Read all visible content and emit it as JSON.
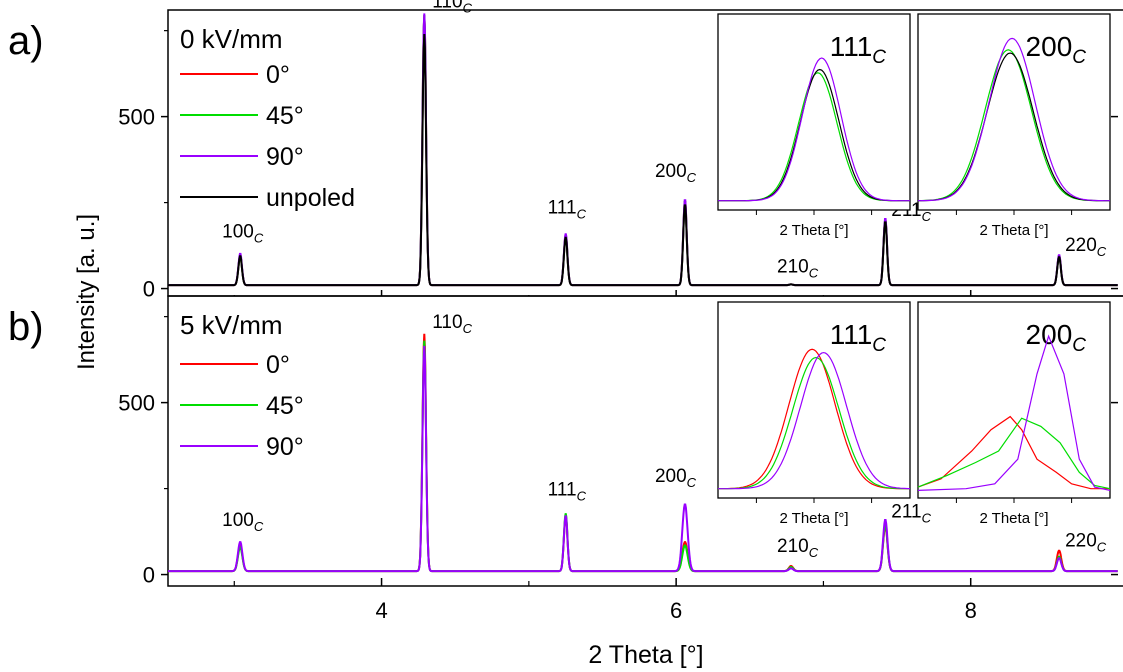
{
  "figure": {
    "ylabel": "Intensity [a. u.]",
    "xlabel": "2 Theta [°]"
  },
  "chart_data": [
    {
      "type": "line",
      "panel_label": "a)",
      "title": "0 kV/mm",
      "xlabel": "2 Theta [°]",
      "ylabel": "Intensity [a. u.]",
      "xlim": [
        2.55,
        9.0
      ],
      "ylim": [
        -10,
        810
      ],
      "x_ticks": [
        4,
        6,
        8
      ],
      "y_ticks": [
        0,
        500
      ],
      "legend_position": "top-left",
      "series": [
        {
          "name": "0°",
          "color": "#ff0000"
        },
        {
          "name": "45°",
          "color": "#00dd00"
        },
        {
          "name": "90°",
          "color": "#9900ff"
        },
        {
          "name": "unpoled",
          "color": "#000000"
        }
      ],
      "baseline": 10,
      "peaks": [
        {
          "label_base": "100",
          "label_sub": "C",
          "x": 3.04,
          "width": 0.012,
          "heights": {
            "0°": 95,
            "45°": 95,
            "90°": 102,
            "unpoled": 95
          }
        },
        {
          "label_base": "110",
          "label_sub": "C",
          "x": 4.29,
          "width": 0.012,
          "heights": {
            "0°": 795,
            "45°": 795,
            "90°": 800,
            "unpoled": 740
          }
        },
        {
          "label_base": "111",
          "label_sub": "C",
          "x": 5.25,
          "width": 0.012,
          "heights": {
            "0°": 155,
            "45°": 155,
            "90°": 160,
            "unpoled": 150
          }
        },
        {
          "label_base": "200",
          "label_sub": "C",
          "x": 6.06,
          "width": 0.012,
          "heights": {
            "0°": 255,
            "45°": 255,
            "90°": 260,
            "unpoled": 245
          }
        },
        {
          "label_base": "210",
          "label_sub": "C",
          "x": 6.78,
          "width": 0.012,
          "heights": {
            "0°": 12,
            "45°": 12,
            "90°": 12,
            "unpoled": 12
          }
        },
        {
          "label_base": "211",
          "label_sub": "C",
          "x": 7.42,
          "width": 0.012,
          "heights": {
            "0°": 200,
            "45°": 200,
            "90°": 205,
            "unpoled": 195
          }
        },
        {
          "label_base": "220",
          "label_sub": "C",
          "x": 8.6,
          "width": 0.012,
          "heights": {
            "0°": 95,
            "45°": 95,
            "90°": 98,
            "unpoled": 92
          }
        }
      ],
      "insets": [
        {
          "title_base": "111",
          "title_sub": "C",
          "xlabel": "2 Theta [°]",
          "series": [
            {
              "name": "45°",
              "x0": 0.52,
              "w": 0.1,
              "h": 0.78,
              "color": "#00dd00"
            },
            {
              "name": "unpoled",
              "x0": 0.53,
              "w": 0.1,
              "h": 0.8,
              "color": "#000000"
            },
            {
              "name": "90°",
              "x0": 0.54,
              "w": 0.1,
              "h": 0.87,
              "color": "#9900ff"
            }
          ]
        },
        {
          "title_base": "200",
          "title_sub": "C",
          "xlabel": "2 Theta [°]",
          "series": [
            {
              "name": "45°",
              "x0": 0.47,
              "w": 0.12,
              "h": 0.92,
              "color": "#00dd00"
            },
            {
              "name": "unpoled",
              "x0": 0.48,
              "w": 0.12,
              "h": 0.9,
              "color": "#000000"
            },
            {
              "name": "90°",
              "x0": 0.49,
              "w": 0.12,
              "h": 0.99,
              "color": "#9900ff"
            }
          ]
        }
      ]
    },
    {
      "type": "line",
      "panel_label": "b)",
      "title": "5 kV/mm",
      "xlabel": "2 Theta [°]",
      "ylabel": "Intensity [a. u.]",
      "xlim": [
        2.55,
        9.0
      ],
      "ylim": [
        -10,
        810
      ],
      "x_ticks": [
        4,
        6,
        8
      ],
      "y_ticks": [
        0,
        500
      ],
      "legend_position": "top-left",
      "series": [
        {
          "name": "0°",
          "color": "#ff0000"
        },
        {
          "name": "45°",
          "color": "#00dd00"
        },
        {
          "name": "90°",
          "color": "#9900ff"
        }
      ],
      "baseline": 10,
      "peaks": [
        {
          "label_base": "100",
          "label_sub": "C",
          "x": 3.04,
          "width": 0.015,
          "heights": {
            "0°": 85,
            "45°": 80,
            "90°": 95
          }
        },
        {
          "label_base": "110",
          "label_sub": "C",
          "x": 4.29,
          "width": 0.012,
          "heights": {
            "0°": 700,
            "45°": 680,
            "90°": 665
          }
        },
        {
          "label_base": "111",
          "label_sub": "C",
          "x": 5.25,
          "width": 0.012,
          "heights": {
            "0°": 170,
            "45°": 178,
            "90°": 172
          }
        },
        {
          "label_base": "200",
          "label_sub": "C",
          "x": 6.06,
          "width": 0.018,
          "heights": {
            "0°": 95,
            "45°": 85,
            "90°": 205
          }
        },
        {
          "label_base": "210",
          "label_sub": "C",
          "x": 6.78,
          "width": 0.015,
          "heights": {
            "0°": 25,
            "45°": 22,
            "90°": 18
          }
        },
        {
          "label_base": "211",
          "label_sub": "C",
          "x": 7.42,
          "width": 0.015,
          "heights": {
            "0°": 140,
            "45°": 145,
            "90°": 160
          }
        },
        {
          "label_base": "220",
          "label_sub": "C",
          "x": 8.6,
          "width": 0.015,
          "heights": {
            "0°": 70,
            "45°": 52,
            "90°": 48
          }
        }
      ],
      "insets": [
        {
          "title_base": "111",
          "title_sub": "C",
          "xlabel": "2 Theta [°]",
          "series": [
            {
              "name": "0°",
              "x0": 0.49,
              "w": 0.12,
              "h": 0.85,
              "color": "#ff0000"
            },
            {
              "name": "45°",
              "x0": 0.51,
              "w": 0.12,
              "h": 0.8,
              "color": "#00dd00"
            },
            {
              "name": "90°",
              "x0": 0.55,
              "w": 0.12,
              "h": 0.83,
              "color": "#9900ff"
            }
          ]
        },
        {
          "title_base": "200",
          "title_sub": "C",
          "xlabel": "2 Theta [°]",
          "series": [
            {
              "name": "0°",
              "color": "#ff0000",
              "x": [
                0,
                0.12,
                0.28,
                0.38,
                0.48,
                0.54,
                0.62,
                0.72,
                0.8,
                0.9,
                1
              ],
              "y": [
                0.03,
                0.08,
                0.25,
                0.38,
                0.46,
                0.38,
                0.2,
                0.12,
                0.05,
                0.02,
                0.02
              ]
            },
            {
              "name": "45°",
              "color": "#00dd00",
              "x": [
                0,
                0.15,
                0.3,
                0.42,
                0.54,
                0.64,
                0.74,
                0.84,
                0.92,
                1
              ],
              "y": [
                0.03,
                0.1,
                0.18,
                0.25,
                0.45,
                0.4,
                0.3,
                0.12,
                0.04,
                0.02
              ]
            },
            {
              "name": "90°",
              "color": "#9900ff",
              "x": [
                0,
                0.25,
                0.4,
                0.52,
                0.62,
                0.68,
                0.76,
                0.84,
                0.92,
                1
              ],
              "y": [
                0.01,
                0.02,
                0.05,
                0.2,
                0.72,
                0.95,
                0.72,
                0.2,
                0.03,
                0.01
              ]
            }
          ]
        }
      ]
    }
  ]
}
